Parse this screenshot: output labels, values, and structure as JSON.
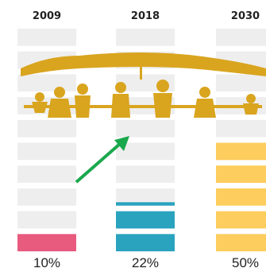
{
  "chart_data": {
    "type": "bar",
    "title": "",
    "xlabel": "",
    "ylabel": "",
    "categories": [
      "2009",
      "2018",
      "2030"
    ],
    "values": [
      10,
      22,
      50
    ],
    "value_labels": [
      "10%",
      "22%",
      "50%"
    ],
    "ylim": [
      0,
      100
    ],
    "grid": false,
    "legend": "none",
    "segments_per_column": 10,
    "colors": [
      "#e85a7e",
      "#2aa3bf",
      "#fdcd5d"
    ],
    "empty_color": "#eeeeee",
    "illustration": "umbrella-over-family",
    "illustration_color": "#d9a51f",
    "annotation": "green arrow pointing up toward 2018"
  }
}
